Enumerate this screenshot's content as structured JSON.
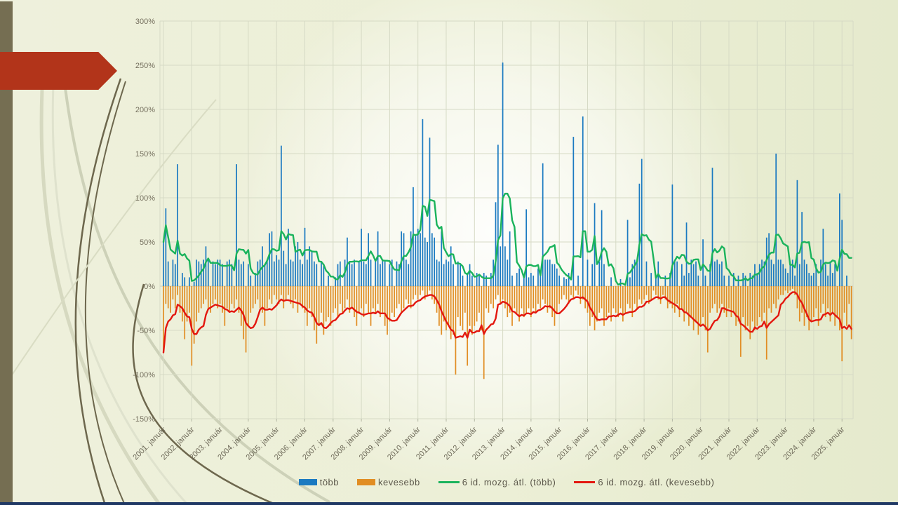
{
  "slide": {
    "background_color": "#edf0d9",
    "left_strip_color": "#756e52",
    "arrow_color": "#b2341a",
    "bottom_bar_color": "#1f3864",
    "gridline_color": "#d6dac5",
    "zero_line_color": "#c6cab5",
    "curve_dark_color": "#6d674d",
    "curve_light_color": "#d6d9c0"
  },
  "chart_data": {
    "type": "bar",
    "title": "",
    "xlabel": "",
    "ylabel": "",
    "start_month": "2001-01",
    "months_count": 293,
    "grid": "on",
    "legend_position": "bottom",
    "y_axis": {
      "min": -150,
      "max": 300,
      "step": 50,
      "format": "percent",
      "values": [
        300,
        250,
        200,
        150,
        100,
        50,
        0,
        -50,
        -100,
        -150
      ],
      "labels": [
        "300%",
        "250%",
        "200%",
        "150%",
        "100%",
        "50%",
        "0%",
        "-50%",
        "-100%",
        "-150%"
      ]
    },
    "x_tick_labels": [
      "2001. január",
      "2002. január",
      "2003. január",
      "2004. január",
      "2005. január",
      "2006. január",
      "2007. január",
      "2008. január",
      "2009. január",
      "2010. január",
      "2011. január",
      "2012. január",
      "2013. január",
      "2014. január",
      "2015. január",
      "2016. január",
      "2017. január",
      "2018. január",
      "2019. január",
      "2020. január",
      "2021. január",
      "2022. január",
      "2023. január",
      "2024. január",
      "2025. január"
    ],
    "series": [
      {
        "name": "több",
        "type": "bar",
        "color": "#1b7ac1",
        "values": [
          50,
          88,
          28,
          0,
          30,
          25,
          138,
          0,
          15,
          10,
          0,
          10,
          0,
          5,
          30,
          28,
          25,
          30,
          45,
          30,
          0,
          28,
          25,
          30,
          30,
          25,
          0,
          28,
          30,
          25,
          0,
          138,
          30,
          25,
          28,
          0,
          25,
          12,
          0,
          15,
          28,
          30,
          45,
          25,
          30,
          60,
          62,
          28,
          35,
          30,
          159,
          40,
          25,
          65,
          30,
          28,
          45,
          50,
          30,
          25,
          66,
          30,
          45,
          40,
          28,
          25,
          0,
          28,
          25,
          0,
          12,
          0,
          0,
          10,
          25,
          28,
          0,
          30,
          55,
          28,
          25,
          30,
          0,
          28,
          65,
          28,
          25,
          60,
          30,
          0,
          28,
          62,
          25,
          30,
          28,
          0,
          25,
          30,
          0,
          28,
          25,
          62,
          60,
          30,
          25,
          62,
          112,
          58,
          65,
          60,
          189,
          55,
          50,
          168,
          60,
          55,
          30,
          28,
          62,
          25,
          30,
          28,
          45,
          25,
          0,
          28,
          25,
          12,
          0,
          15,
          25,
          12,
          0,
          15,
          12,
          0,
          15,
          12,
          0,
          15,
          30,
          95,
          160,
          45,
          253,
          45,
          30,
          62,
          12,
          0,
          15,
          20,
          0,
          12,
          87,
          10,
          15,
          12,
          0,
          20,
          15,
          139,
          30,
          30,
          30,
          25,
          25,
          20,
          12,
          0,
          10,
          8,
          15,
          0,
          169,
          0,
          12,
          0,
          192,
          0,
          30,
          0,
          25,
          94,
          0,
          28,
          86,
          25,
          0,
          0,
          10,
          0,
          0,
          0,
          8,
          0,
          0,
          75,
          10,
          25,
          30,
          28,
          116,
          144,
          0,
          28,
          0,
          15,
          0,
          12,
          28,
          0,
          0,
          12,
          0,
          15,
          115,
          30,
          28,
          0,
          25,
          12,
          72,
          15,
          30,
          25,
          28,
          12,
          0,
          53,
          12,
          0,
          25,
          134,
          28,
          30,
          25,
          28,
          12,
          0,
          12,
          0,
          15,
          0,
          12,
          0,
          15,
          12,
          0,
          15,
          12,
          25,
          15,
          25,
          30,
          28,
          55,
          60,
          30,
          25,
          150,
          30,
          30,
          25,
          20,
          15,
          25,
          30,
          12,
          120,
          25,
          84,
          30,
          25,
          15,
          12,
          15,
          25,
          0,
          30,
          65,
          25,
          12,
          28,
          15,
          25,
          0,
          105,
          75,
          0,
          12,
          0,
          0
        ]
      },
      {
        "name": "kevesebb",
        "type": "bar",
        "color": "#e18d23",
        "values": [
          -75,
          -20,
          -25,
          -30,
          -15,
          -25,
          -10,
          -30,
          -40,
          -60,
          -40,
          -30,
          -90,
          -65,
          -40,
          -30,
          -25,
          -20,
          -15,
          -25,
          -30,
          -20,
          -15,
          -25,
          -20,
          -30,
          -45,
          -25,
          -30,
          -20,
          -25,
          -15,
          -30,
          -45,
          -60,
          -75,
          -45,
          -30,
          -25,
          -20,
          -15,
          -25,
          -30,
          -45,
          -25,
          -15,
          -20,
          -10,
          -15,
          -20,
          -10,
          -25,
          -15,
          -10,
          -20,
          -25,
          -15,
          -30,
          -20,
          -25,
          -30,
          -45,
          -25,
          -35,
          -50,
          -65,
          -45,
          -30,
          -55,
          -40,
          -35,
          -45,
          -30,
          -25,
          -35,
          -20,
          -30,
          -25,
          -15,
          -30,
          -25,
          -35,
          -45,
          -30,
          -25,
          -35,
          -20,
          -30,
          -45,
          -25,
          -30,
          -20,
          -35,
          -30,
          -45,
          -55,
          -40,
          -30,
          -35,
          -25,
          -20,
          -30,
          -25,
          -15,
          -20,
          -25,
          -15,
          -10,
          -15,
          -10,
          -5,
          -15,
          -10,
          -5,
          -15,
          -20,
          -30,
          -45,
          -55,
          -40,
          -50,
          -45,
          -60,
          -55,
          -100,
          -35,
          -45,
          -50,
          -30,
          -90,
          -45,
          -55,
          -45,
          -40,
          -30,
          -50,
          -105,
          -25,
          -30,
          -20,
          -25,
          -15,
          -10,
          -20,
          -15,
          -25,
          -35,
          -30,
          -45,
          -25,
          -30,
          -40,
          -25,
          -35,
          -30,
          -25,
          -35,
          -25,
          -30,
          -20,
          -25,
          -15,
          -20,
          -30,
          -25,
          -35,
          -45,
          -30,
          -20,
          -15,
          -10,
          -15,
          -20,
          -10,
          -15,
          -5,
          -10,
          -20,
          -15,
          -25,
          -30,
          -45,
          -35,
          -50,
          -40,
          -30,
          -25,
          -45,
          -35,
          -30,
          -40,
          -25,
          -30,
          -35,
          -25,
          -40,
          -30,
          -20,
          -25,
          -35,
          -20,
          -25,
          -15,
          -20,
          -15,
          -10,
          -20,
          -15,
          -5,
          -10,
          -15,
          -20,
          -10,
          -15,
          -25,
          -20,
          -25,
          -30,
          -20,
          -35,
          -25,
          -40,
          -30,
          -45,
          -35,
          -50,
          -40,
          -55,
          -45,
          -35,
          -50,
          -75,
          -30,
          -25,
          -20,
          -30,
          -25,
          -20,
          -30,
          -35,
          -25,
          -35,
          -30,
          -45,
          -40,
          -80,
          -35,
          -50,
          -45,
          -60,
          -40,
          -50,
          -45,
          -35,
          -40,
          -30,
          -83,
          -25,
          -30,
          -20,
          -25,
          -15,
          -10,
          -10,
          -5,
          -8,
          -5,
          -3,
          -10,
          -25,
          -40,
          -30,
          -45,
          -35,
          -50,
          -40,
          -35,
          -25,
          -45,
          -30,
          -20,
          -35,
          -25,
          -40,
          -30,
          -45,
          -35,
          -50,
          -85,
          -30,
          -45,
          -20,
          -60
        ]
      },
      {
        "name": "6 id. mozg. átl. (több)",
        "type": "line",
        "color": "#1ab35c",
        "derived": "6-period trailing moving average of series 'több'"
      },
      {
        "name": "6 id. mozg. átl. (kevesebb)",
        "type": "line",
        "color": "#e3170f",
        "derived": "6-period trailing moving average of series 'kevesebb'"
      }
    ],
    "legend": {
      "items": [
        {
          "label": "több",
          "swatch": "bar",
          "color": "#1b7ac1"
        },
        {
          "label": "kevesebb",
          "swatch": "bar",
          "color": "#e18d23"
        },
        {
          "label": "6 id. mozg. átl. (több)",
          "swatch": "line",
          "color": "#1ab35c"
        },
        {
          "label": "6 id. mozg. átl. (kevesebb)",
          "swatch": "line",
          "color": "#e3170f"
        }
      ]
    }
  }
}
